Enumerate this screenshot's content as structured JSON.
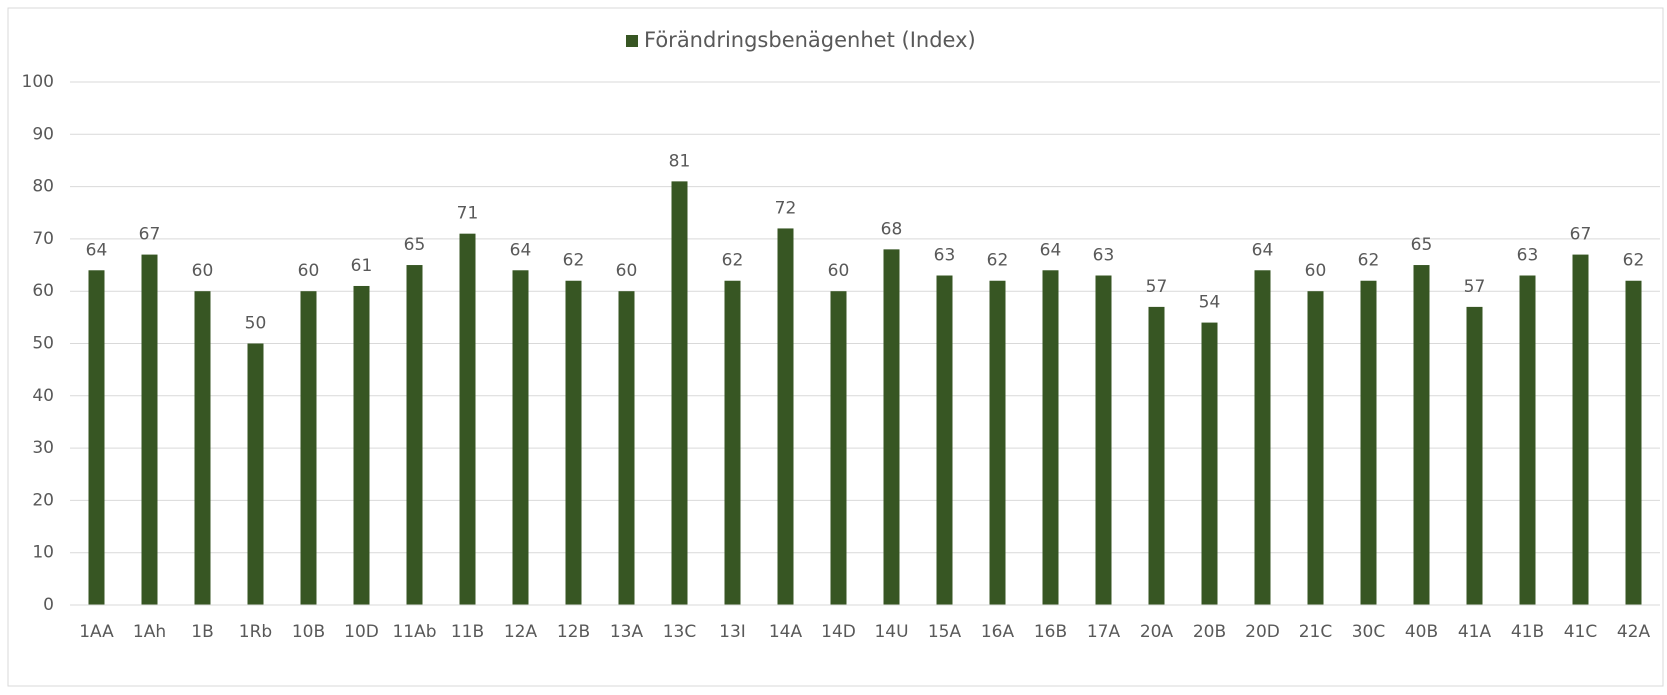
{
  "chart_data": {
    "type": "bar",
    "categories": [
      "1AA",
      "1Ah",
      "1B",
      "1Rb",
      "10B",
      "10D",
      "11Ab",
      "11B",
      "12A",
      "12B",
      "13A",
      "13C",
      "13I",
      "14A",
      "14D",
      "14U",
      "15A",
      "16A",
      "16B",
      "17A",
      "20A",
      "20B",
      "20D",
      "21C",
      "30C",
      "40B",
      "41A",
      "41B",
      "41C",
      "42A"
    ],
    "series": [
      {
        "name": "Förändringsbenägenhet (Index)",
        "color": "#375623",
        "values": [
          64,
          67,
          60,
          50,
          60,
          61,
          65,
          71,
          64,
          62,
          60,
          81,
          62,
          72,
          60,
          68,
          63,
          62,
          64,
          63,
          57,
          54,
          64,
          60,
          62,
          65,
          57,
          63,
          67,
          62
        ]
      }
    ],
    "ylim": [
      0,
      100
    ],
    "yticks": [
      0,
      10,
      20,
      30,
      40,
      50,
      60,
      70,
      80,
      90,
      100
    ],
    "grid": true,
    "legend": "top"
  }
}
